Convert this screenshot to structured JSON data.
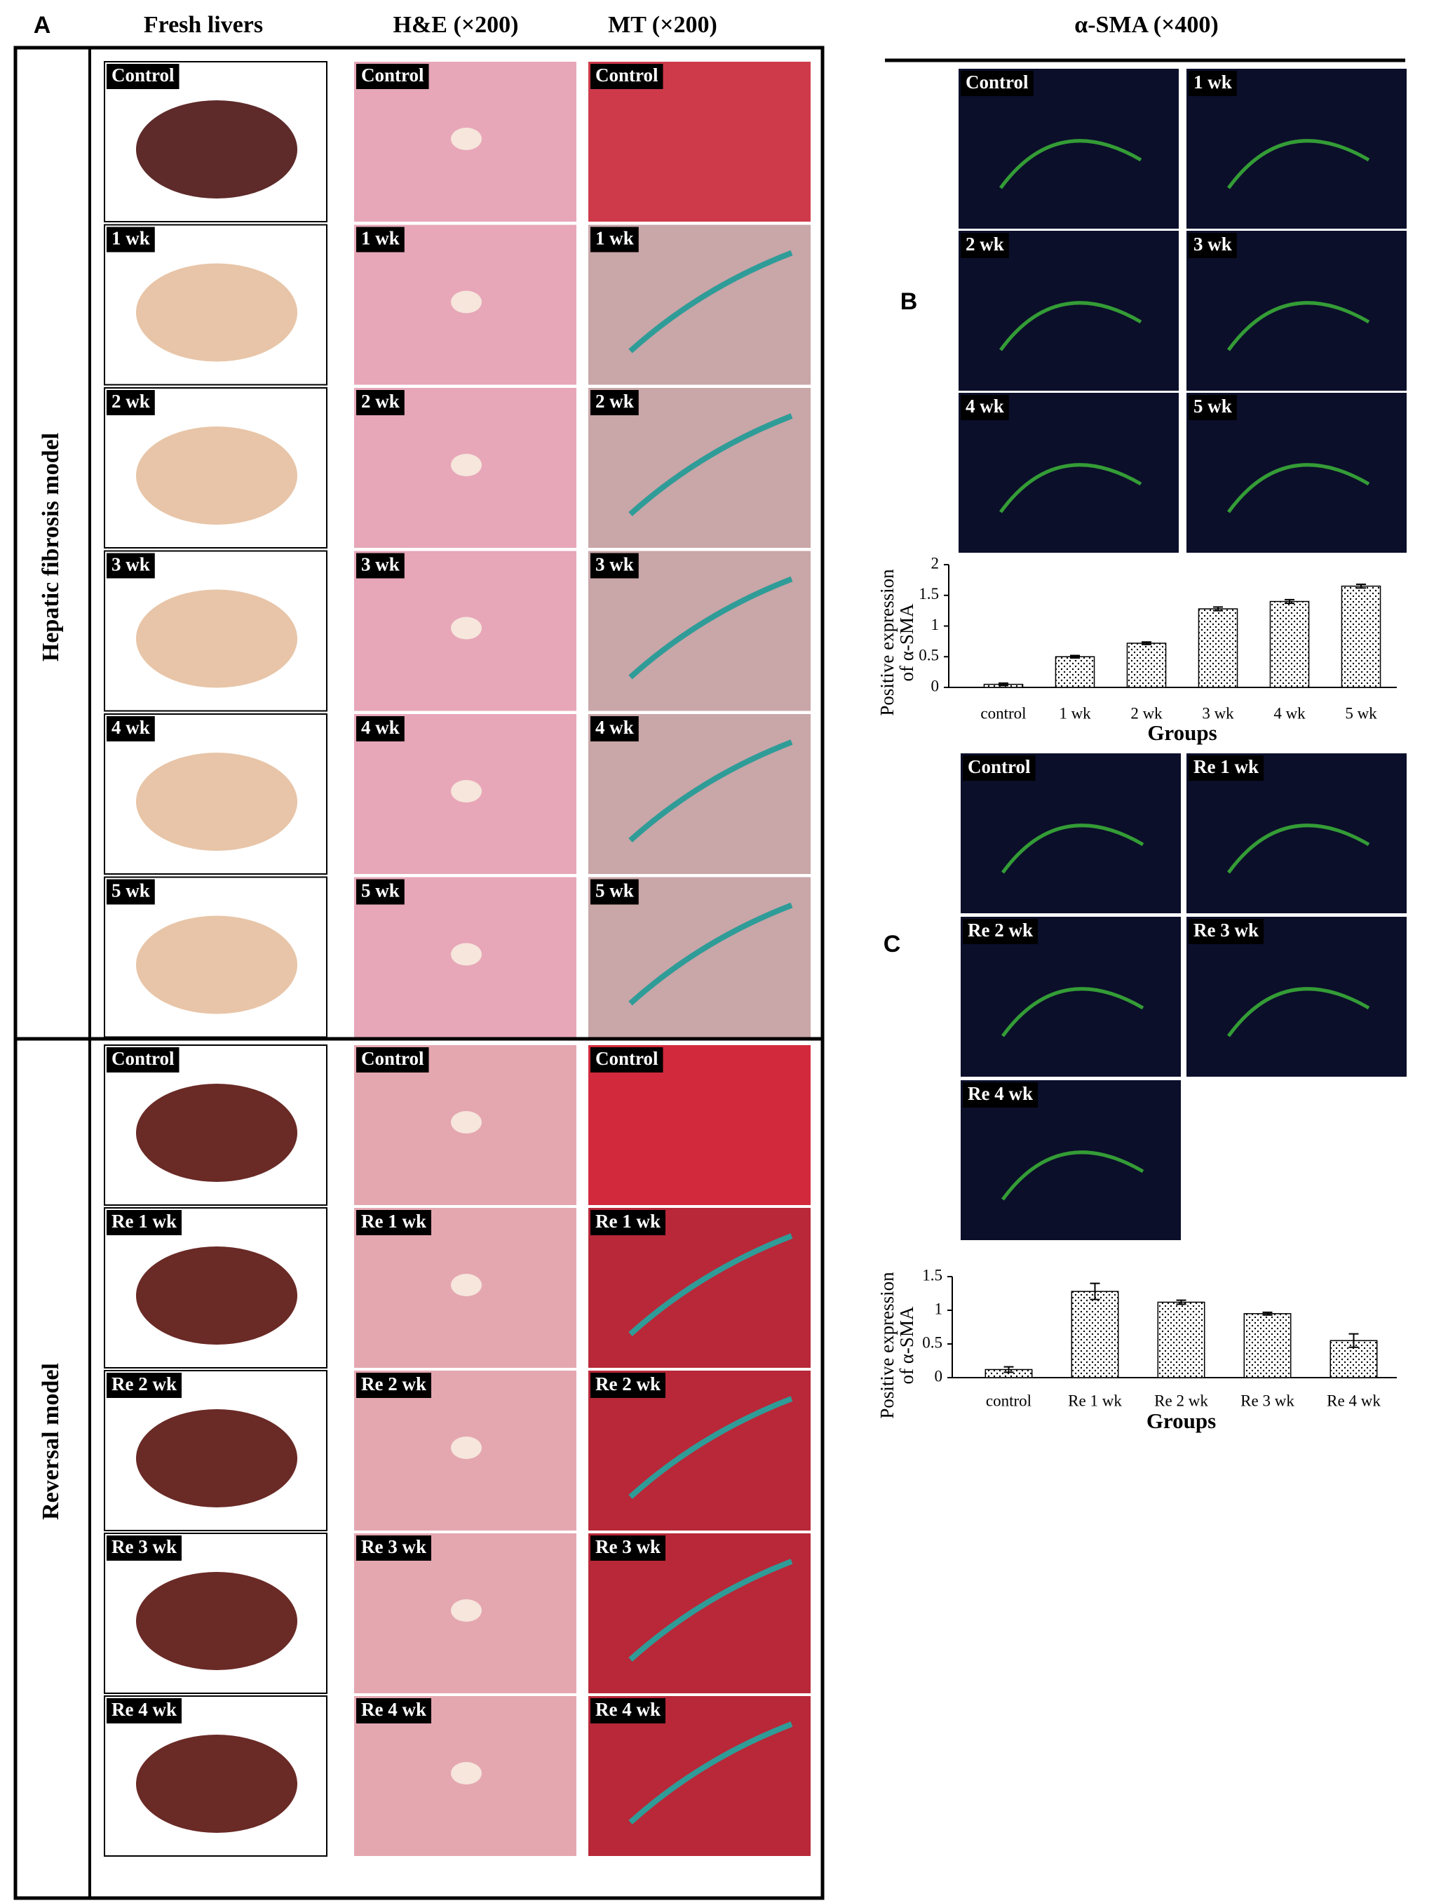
{
  "panel_a": {
    "label": "A",
    "columns": [
      "Fresh livers",
      "H&E (×200)",
      "MT (×200)"
    ],
    "groups": [
      {
        "name": "Hepatic fibrosis model",
        "rows": [
          "Control",
          "1 wk",
          "2 wk",
          "3 wk",
          "4 wk",
          "5 wk"
        ]
      },
      {
        "name": "Reversal model",
        "rows": [
          "Control",
          "Re 1 wk",
          "Re 2 wk",
          "Re 3 wk",
          "Re 4 wk"
        ]
      }
    ]
  },
  "panel_b": {
    "label": "B",
    "title": "α-SMA (×400)",
    "images": [
      "Control",
      "1 wk",
      "2 wk",
      "3 wk",
      "4 wk",
      "5 wk"
    ]
  },
  "panel_c": {
    "label": "C",
    "images": [
      "Control",
      "Re 1 wk",
      "Re 2 wk",
      "Re 3 wk",
      "Re 4 wk"
    ]
  },
  "chart_data": [
    {
      "type": "bar",
      "ylabel": [
        "Positive expression",
        "of α-SMA"
      ],
      "xlabel": "Groups",
      "categories": [
        "control",
        "1 wk",
        "2 wk",
        "3 wk",
        "4 wk",
        "5 wk"
      ],
      "values": [
        0.05,
        0.5,
        0.72,
        1.28,
        1.4,
        1.65
      ],
      "errors": [
        0.02,
        0.02,
        0.02,
        0.03,
        0.03,
        0.03
      ],
      "ylim": [
        0,
        2
      ],
      "yticks": [
        0,
        0.5,
        1,
        1.5,
        2
      ]
    },
    {
      "type": "bar",
      "ylabel": [
        "Positive expression",
        "of α-SMA"
      ],
      "xlabel": "Groups",
      "categories": [
        "control",
        "Re 1 wk",
        "Re 2 wk",
        "Re 3 wk",
        "Re 4 wk"
      ],
      "values": [
        0.12,
        1.28,
        1.12,
        0.95,
        0.55
      ],
      "errors": [
        0.04,
        0.12,
        0.03,
        0.02,
        0.1
      ],
      "ylim": [
        0,
        1.5
      ],
      "yticks": [
        0,
        0.5,
        1,
        1.5
      ]
    }
  ]
}
